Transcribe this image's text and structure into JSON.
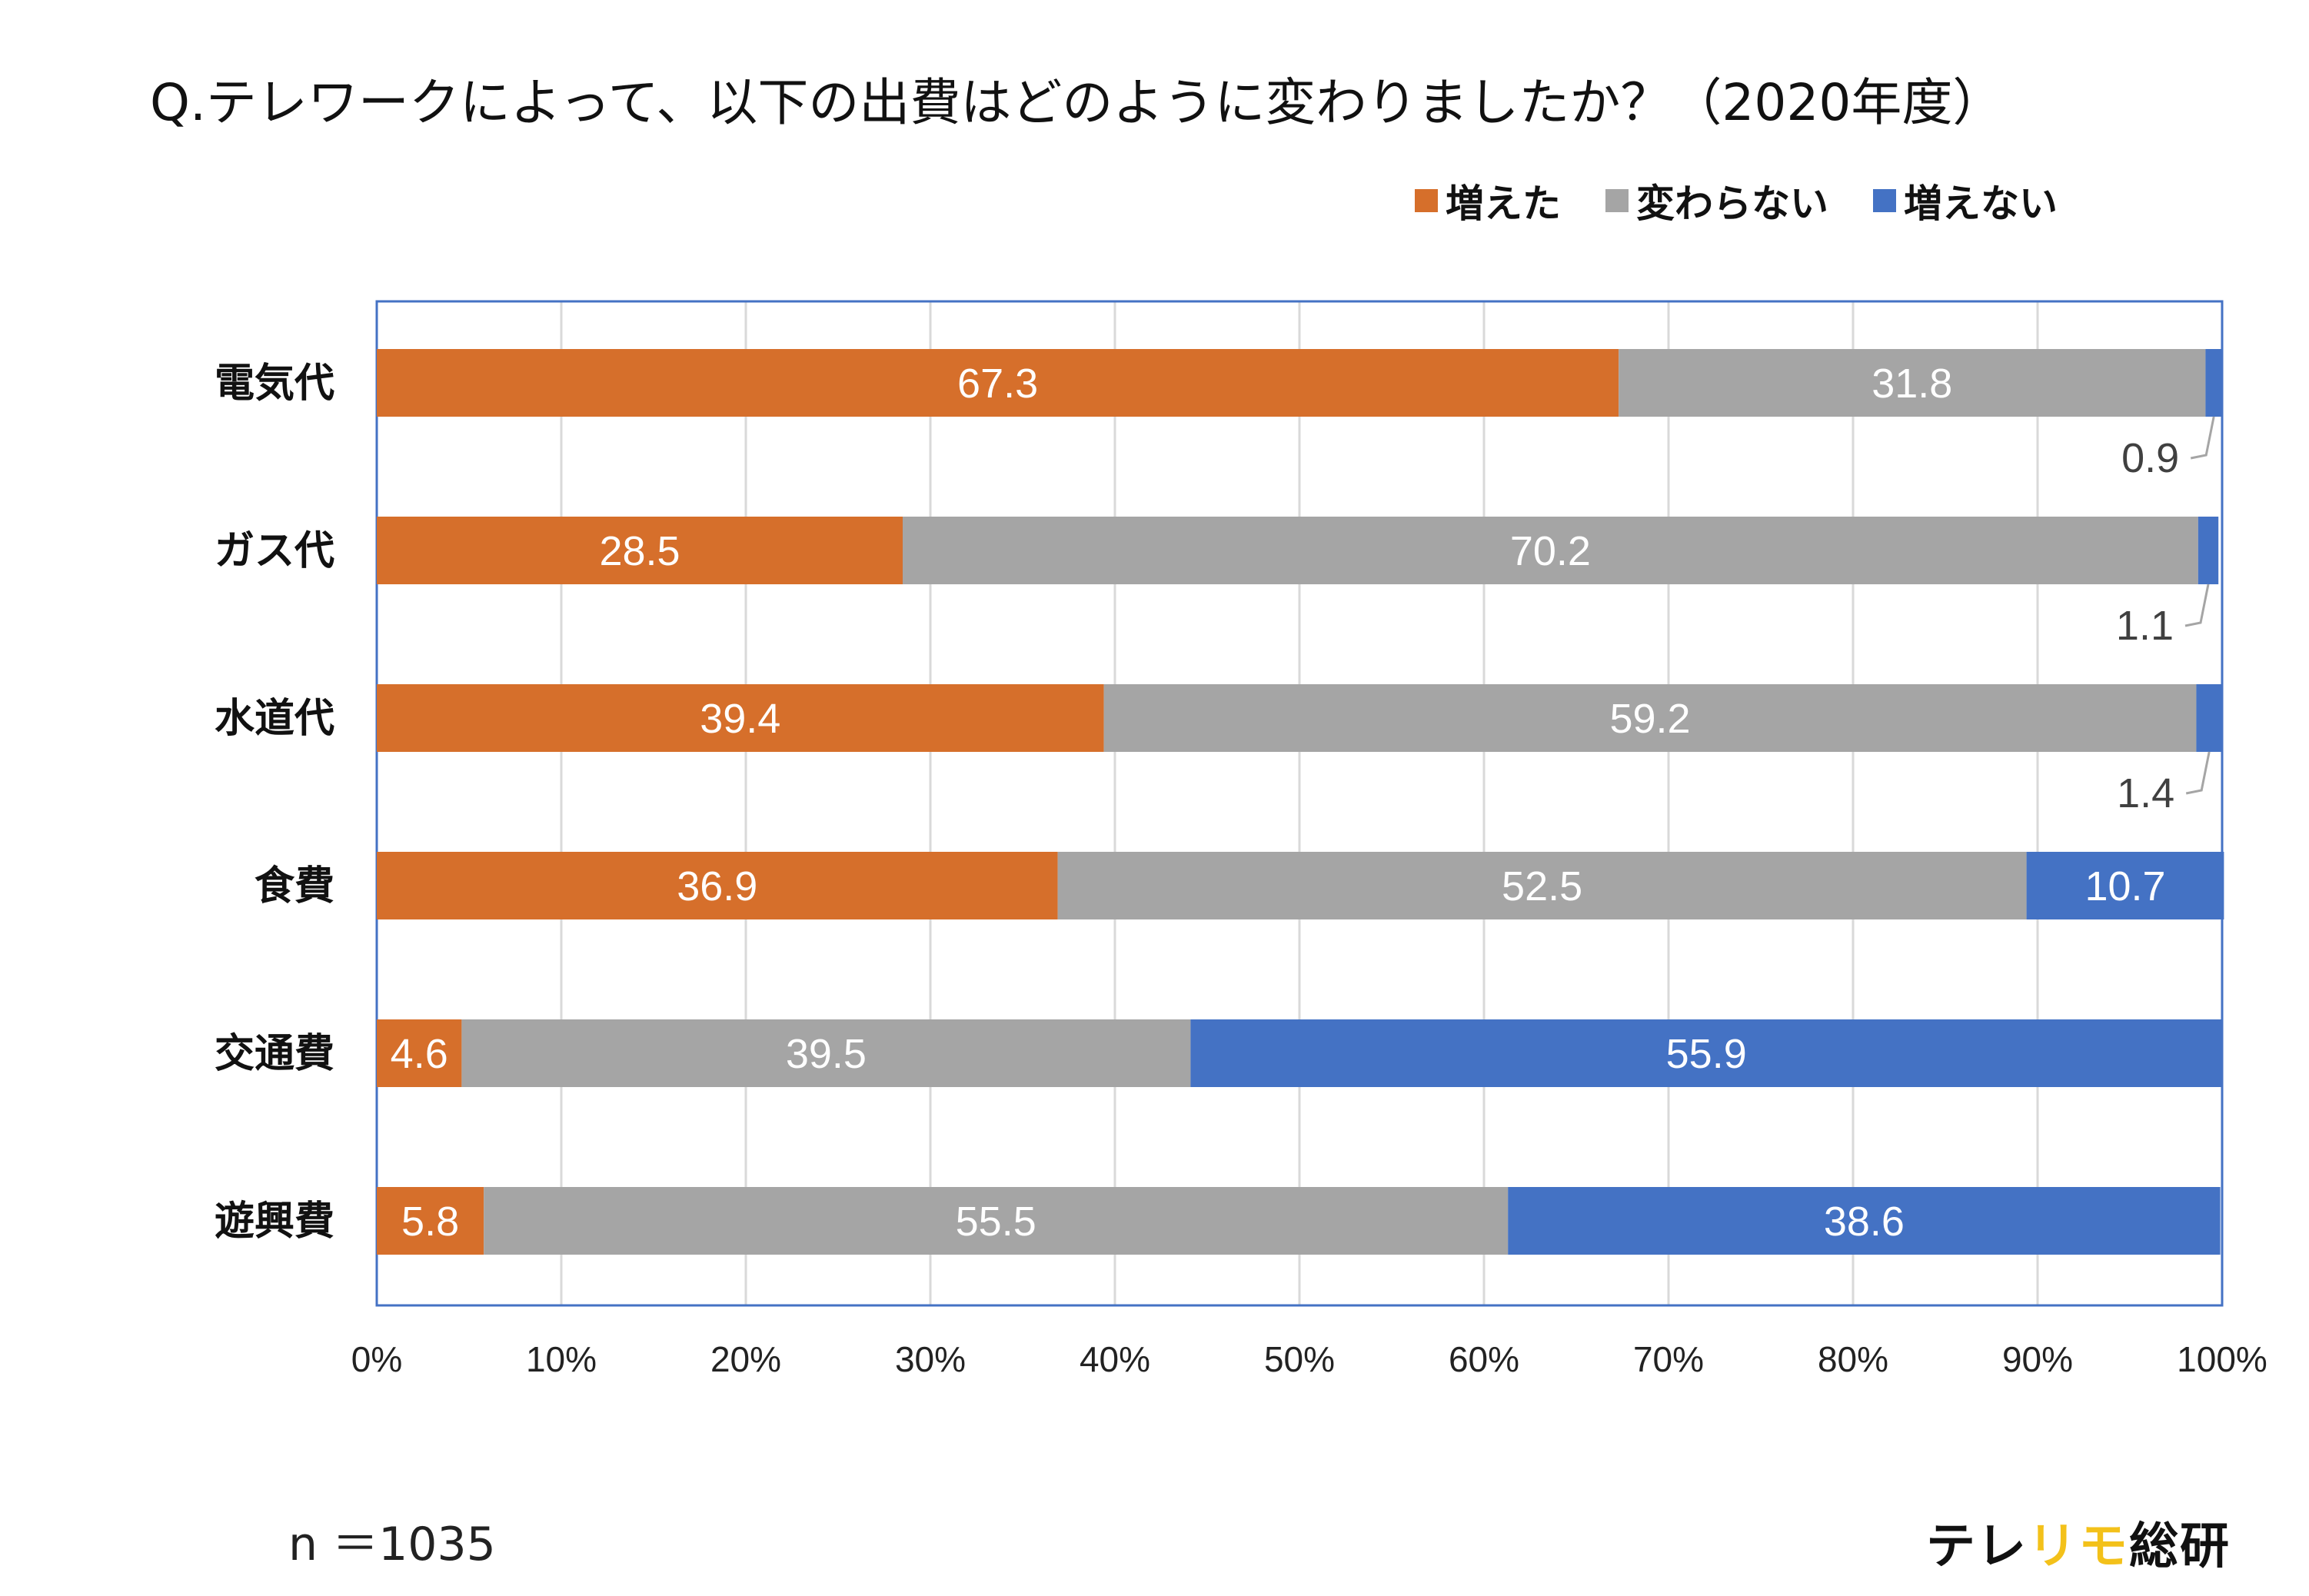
{
  "title": "Q.テレワークによって、以下の出費はどのように変わりましたか？（2020年度）",
  "legend": [
    {
      "label": "増えた",
      "color": "#d66f2b"
    },
    {
      "label": "変わらない",
      "color": "#a5a5a5"
    },
    {
      "label": "増えない",
      "color": "#4472c4"
    }
  ],
  "sample_size": "n ＝1035",
  "logo": {
    "part1": "テレ",
    "part2": "リモ",
    "part3": "総研"
  },
  "chart_data": {
    "type": "bar",
    "orientation": "horizontal",
    "stacked": "percent",
    "categories": [
      "電気代",
      "ガス代",
      "水道代",
      "食費",
      "交通費",
      "遊興費"
    ],
    "series": [
      {
        "name": "増えた",
        "color": "#d66f2b",
        "values": [
          67.3,
          28.5,
          39.4,
          36.9,
          4.6,
          5.8
        ]
      },
      {
        "name": "変わらない",
        "color": "#a5a5a5",
        "values": [
          31.8,
          70.2,
          59.2,
          52.5,
          39.5,
          55.5
        ]
      },
      {
        "name": "増えない",
        "color": "#4472c4",
        "values": [
          0.9,
          1.1,
          1.4,
          10.7,
          55.9,
          38.6
        ]
      }
    ],
    "xlim": [
      0,
      100
    ],
    "x_ticks": [
      "0%",
      "10%",
      "20%",
      "30%",
      "40%",
      "50%",
      "60%",
      "70%",
      "80%",
      "90%",
      "100%"
    ],
    "grid": true,
    "legend_position": "top-right",
    "callout_labels": [
      "0.9",
      "1.1",
      "1.4"
    ]
  }
}
